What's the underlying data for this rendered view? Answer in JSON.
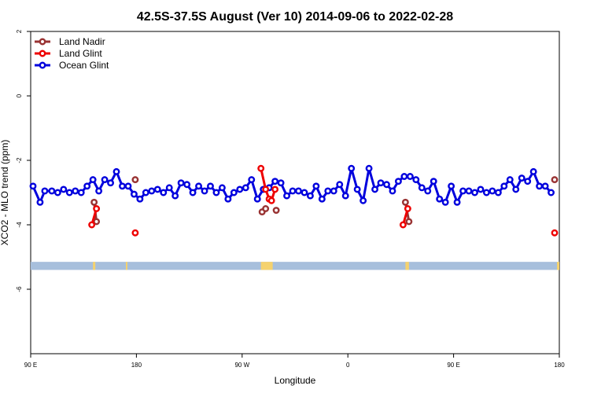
{
  "chart_data": {
    "type": "line",
    "title": "42.5S-37.5S August (Ver 10)   2014-09-06 to 2022-02-28",
    "xlabel": "Longitude",
    "ylabel": "XCO2 - MLO trend (ppm)",
    "xlim": [
      90,
      540
    ],
    "ylim": [
      -8,
      2
    ],
    "grid": false,
    "legend_position": "top-left",
    "x_ticks": [
      {
        "value": 90,
        "label": "90 E"
      },
      {
        "value": 180,
        "label": "180"
      },
      {
        "value": 270,
        "label": "90 W"
      },
      {
        "value": 360,
        "label": "0"
      },
      {
        "value": 450,
        "label": "90 E"
      },
      {
        "value": 540,
        "label": "180"
      }
    ],
    "y_ticks": [
      {
        "value": 2,
        "label": "2"
      },
      {
        "value": 0,
        "label": "0"
      },
      {
        "value": -2,
        "label": "-2"
      },
      {
        "value": -4,
        "label": "-4"
      },
      {
        "value": -6,
        "label": "-6"
      }
    ],
    "series": [
      {
        "name": "Land Nadir",
        "color": "#993333",
        "segments": [
          [
            [
              144,
              -3.3
            ],
            [
              146,
              -3.9
            ]
          ],
          [
            [
              179,
              -2.6
            ]
          ],
          [
            [
              287,
              -3.6
            ],
            [
              290,
              -3.5
            ]
          ],
          [
            [
              299,
              -3.55
            ]
          ],
          [
            [
              409,
              -3.3
            ],
            [
              412,
              -3.9
            ]
          ],
          [
            [
              536,
              -2.6
            ]
          ]
        ]
      },
      {
        "name": "Land Glint",
        "color": "#ee0000",
        "segments": [
          [
            [
              142,
              -4.0
            ],
            [
              146,
              -3.5
            ]
          ],
          [
            [
              179,
              -4.25
            ]
          ],
          [
            [
              286,
              -2.25
            ],
            [
              290,
              -2.9
            ],
            [
              293,
              -3.2
            ]
          ],
          [
            [
              295,
              -3.25
            ],
            [
              298,
              -2.9
            ]
          ],
          [
            [
              407,
              -4.0
            ],
            [
              411,
              -3.5
            ]
          ],
          [
            [
              536,
              -4.25
            ]
          ]
        ]
      },
      {
        "name": "Ocean Glint",
        "color": "#0000dd",
        "segments": [
          [
            [
              92,
              -2.8
            ],
            [
              98,
              -3.3
            ],
            [
              102,
              -2.95
            ],
            [
              108,
              -2.95
            ],
            [
              113,
              -3.0
            ],
            [
              118,
              -2.9
            ],
            [
              123,
              -3.0
            ],
            [
              128,
              -2.95
            ],
            [
              133,
              -3.0
            ],
            [
              138,
              -2.8
            ],
            [
              143,
              -2.6
            ],
            [
              148,
              -2.95
            ],
            [
              153,
              -2.6
            ],
            [
              158,
              -2.7
            ],
            [
              163,
              -2.35
            ],
            [
              168,
              -2.8
            ],
            [
              173,
              -2.8
            ],
            [
              178,
              -3.05
            ],
            [
              183,
              -3.2
            ],
            [
              188,
              -3.0
            ],
            [
              193,
              -2.95
            ],
            [
              198,
              -2.9
            ],
            [
              203,
              -3.0
            ],
            [
              208,
              -2.85
            ],
            [
              213,
              -3.1
            ],
            [
              218,
              -2.7
            ],
            [
              223,
              -2.75
            ],
            [
              228,
              -3.0
            ],
            [
              233,
              -2.8
            ],
            [
              238,
              -2.95
            ],
            [
              243,
              -2.8
            ],
            [
              248,
              -3.0
            ],
            [
              253,
              -2.85
            ],
            [
              258,
              -3.2
            ],
            [
              263,
              -3.0
            ],
            [
              268,
              -2.9
            ],
            [
              273,
              -2.85
            ],
            [
              278,
              -2.6
            ],
            [
              283,
              -3.2
            ],
            [
              288,
              -2.9
            ],
            [
              293,
              -2.85
            ],
            [
              298,
              -2.65
            ],
            [
              303,
              -2.7
            ],
            [
              308,
              -3.1
            ],
            [
              313,
              -2.95
            ],
            [
              318,
              -2.95
            ],
            [
              323,
              -3.0
            ],
            [
              328,
              -3.1
            ],
            [
              333,
              -2.8
            ],
            [
              338,
              -3.2
            ],
            [
              343,
              -2.95
            ],
            [
              348,
              -2.95
            ],
            [
              353,
              -2.75
            ],
            [
              358,
              -3.1
            ],
            [
              363,
              -2.25
            ],
            [
              368,
              -2.9
            ],
            [
              373,
              -3.25
            ],
            [
              378,
              -2.25
            ],
            [
              383,
              -2.9
            ],
            [
              388,
              -2.7
            ],
            [
              393,
              -2.75
            ],
            [
              398,
              -2.95
            ],
            [
              403,
              -2.65
            ],
            [
              408,
              -2.5
            ],
            [
              413,
              -2.5
            ],
            [
              418,
              -2.6
            ],
            [
              423,
              -2.85
            ],
            [
              428,
              -2.95
            ],
            [
              433,
              -2.65
            ],
            [
              438,
              -3.2
            ],
            [
              443,
              -3.3
            ],
            [
              448,
              -2.8
            ],
            [
              453,
              -3.3
            ],
            [
              458,
              -2.95
            ],
            [
              463,
              -2.95
            ],
            [
              468,
              -3.0
            ],
            [
              473,
              -2.9
            ],
            [
              478,
              -3.0
            ],
            [
              483,
              -2.95
            ],
            [
              488,
              -3.0
            ],
            [
              493,
              -2.8
            ],
            [
              498,
              -2.6
            ],
            [
              503,
              -2.9
            ],
            [
              508,
              -2.55
            ],
            [
              513,
              -2.65
            ],
            [
              518,
              -2.35
            ],
            [
              523,
              -2.8
            ],
            [
              528,
              -2.8
            ],
            [
              533,
              -3.0
            ]
          ]
        ]
      }
    ],
    "band": {
      "y_top": -5.15,
      "y_bottom": -5.4,
      "color": "#a7bfdc",
      "land_color": "#f5d26e",
      "land_ranges": [
        [
          143,
          145
        ],
        [
          171,
          172
        ],
        [
          286,
          296
        ],
        [
          409,
          412
        ],
        [
          538,
          540
        ]
      ]
    }
  }
}
